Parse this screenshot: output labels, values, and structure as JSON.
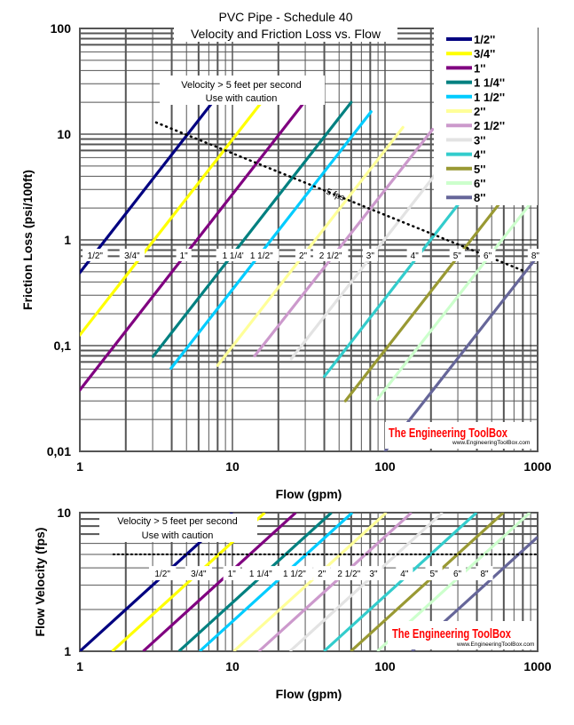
{
  "chart_data": [
    {
      "type": "line",
      "title": "PVC Pipe - Schedule 40",
      "subtitle": "Velocity and Friction Loss vs. Flow",
      "xlabel": "Flow (gpm)",
      "ylabel": "Friction Loss (psi/100ft)",
      "xscale": "log",
      "yscale": "log",
      "xlim": [
        1,
        1000
      ],
      "ylim": [
        0.01,
        100
      ],
      "xticks": [
        "1",
        "10",
        "100",
        "1000"
      ],
      "yticks": [
        "100",
        "10",
        "1",
        "0,1",
        "0,01"
      ],
      "grid": true,
      "legend_position": "top-right",
      "annotation": [
        "Velocity > 5 feet per second",
        "Use with caution"
      ],
      "reference_line": {
        "label": "5 fps",
        "style": "dotted",
        "points": [
          [
            3.16,
            12.9
          ],
          [
            807,
            0.51
          ]
        ]
      },
      "series": [
        {
          "name": "1/2''",
          "color": "#000080",
          "points": [
            [
              1,
              0.49
            ],
            [
              7.4,
              20
            ]
          ],
          "label": "1/2\"",
          "label_x": 1.26
        },
        {
          "name": "3/4''",
          "color": "#ffff00",
          "points": [
            [
              1,
              0.126
            ],
            [
              15.5,
              20
            ]
          ],
          "label": "3/4\"",
          "label_x": 2.2
        },
        {
          "name": "1''",
          "color": "#800080",
          "points": [
            [
              1,
              0.038
            ],
            [
              29.5,
              20
            ]
          ],
          "label": "1\"",
          "label_x": 4.8
        },
        {
          "name": "1 1/4''",
          "color": "#008080",
          "points": [
            [
              3.02,
              0.079
            ],
            [
              60,
              20
            ]
          ],
          "label": "1 1/4\"",
          "label_x": 10.2
        },
        {
          "name": "1 1/2''",
          "color": "#00ccff",
          "points": [
            [
              3.96,
              0.061
            ],
            [
              81,
              16.3
            ]
          ],
          "label": "1 1/2\"",
          "label_x": 15.5
        },
        {
          "name": "2''",
          "color": "#ffff99",
          "points": [
            [
              8.0,
              0.065
            ],
            [
              131,
              11.6
            ]
          ],
          "label": "2\"",
          "label_x": 29
        },
        {
          "name": "2 1/2''",
          "color": "#cc99cc",
          "points": [
            [
              14,
              0.08
            ],
            [
              205,
              11.1
            ]
          ],
          "label": "2 1/2\"",
          "label_x": 44
        },
        {
          "name": "3''",
          "color": "#e3e3e3",
          "points": [
            [
              24.3,
              0.075
            ],
            [
              500,
              20
            ]
          ],
          "label": "3\"",
          "label_x": 80
        },
        {
          "name": "4''",
          "color": "#33cccc",
          "points": [
            [
              40,
              0.051
            ],
            [
              1000,
              20
            ]
          ],
          "label": "4\"",
          "label_x": 156
        },
        {
          "name": "5''",
          "color": "#999933",
          "points": [
            [
              55,
              0.03
            ],
            [
              1000,
              6.4
            ]
          ],
          "label": "5\"",
          "label_x": 297
        },
        {
          "name": "6''",
          "color": "#ccffcc",
          "points": [
            [
              89,
              0.031
            ],
            [
              1000,
              2.7
            ]
          ],
          "label": "6\"",
          "label_x": 470
        },
        {
          "name": "8''",
          "color": "#666699",
          "points": [
            [
              100,
              0.01
            ],
            [
              1000,
              0.7
            ]
          ],
          "label": "8\"",
          "label_x": 1000
        }
      ],
      "label_y": 0.72,
      "watermark": {
        "brand": "The Engineering ToolBox",
        "url": "www.EngineeringToolBox.com"
      }
    },
    {
      "type": "line",
      "xlabel": "Flow (gpm)",
      "ylabel": "Flow Velocity (fps)",
      "xscale": "log",
      "yscale": "log",
      "xlim": [
        1,
        1000
      ],
      "ylim": [
        1,
        10
      ],
      "xticks": [
        "1",
        "10",
        "100",
        "1000"
      ],
      "yticks": [
        "10",
        "1"
      ],
      "grid": true,
      "annotation": [
        "Velocity > 5 feet per second",
        "Use with caution"
      ],
      "reference_line": {
        "style": "dotted",
        "points": [
          [
            1.66,
            5
          ],
          [
            1000,
            5
          ]
        ]
      },
      "series": [
        {
          "name": "1/2\"",
          "color": "#000080",
          "flow_at_1fps": 1.0,
          "label_x": 3.48
        },
        {
          "name": "3/4\"",
          "color": "#ffff00",
          "flow_at_1fps": 1.63,
          "label_x": 6.0
        },
        {
          "name": "1\"",
          "color": "#800080",
          "flow_at_1fps": 2.6,
          "label_x": 9.9
        },
        {
          "name": "1 1/4\"",
          "color": "#008080",
          "flow_at_1fps": 4.46,
          "label_x": 15.3
        },
        {
          "name": "1 1/2\"",
          "color": "#00ccff",
          "flow_at_1fps": 6.1,
          "label_x": 25.5
        },
        {
          "name": "2\"",
          "color": "#ffff99",
          "flow_at_1fps": 10.2,
          "label_x": 38.5
        },
        {
          "name": "2 1/2\"",
          "color": "#cc99cc",
          "flow_at_1fps": 14.9,
          "label_x": 58
        },
        {
          "name": "3\"",
          "color": "#e3e3e3",
          "flow_at_1fps": 23.8,
          "label_x": 84
        },
        {
          "name": "4\"",
          "color": "#33cccc",
          "flow_at_1fps": 39.8,
          "label_x": 134
        },
        {
          "name": "5\"",
          "color": "#999933",
          "flow_at_1fps": 59.7,
          "label_x": 209
        },
        {
          "name": "6\"",
          "color": "#ccffcc",
          "flow_at_1fps": 89,
          "label_x": 298
        },
        {
          "name": "8\"",
          "color": "#666699",
          "flow_at_1fps": 150,
          "label_x": 448
        }
      ],
      "label_y": 3.66,
      "watermark": {
        "brand": "The Engineering ToolBox",
        "url": "www.EngineeringToolBox.com"
      }
    }
  ]
}
